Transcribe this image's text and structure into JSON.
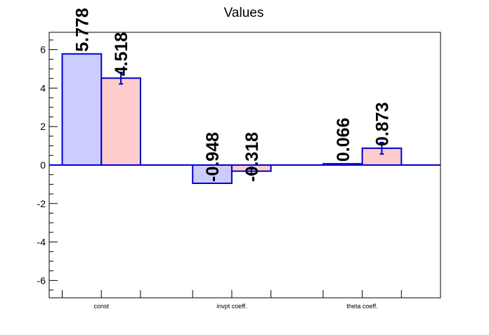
{
  "chart_data": {
    "type": "bar",
    "title": "Values",
    "xlabel": "",
    "ylabel": "",
    "categories": [
      "const",
      "invpt coeff.",
      "theta coeff."
    ],
    "ylim": [
      -6.9,
      6.9
    ],
    "yticks": [
      -6,
      -4,
      -2,
      0,
      2,
      4,
      6
    ],
    "grid": false,
    "legend": "none",
    "series": [
      {
        "values": [
          5.778,
          -0.948,
          0.066
        ],
        "labels": [
          "5.778",
          "-0.948",
          "0.066"
        ],
        "errors": [
          0,
          0,
          0
        ],
        "fill": "#ccccff",
        "stroke": "#0000cc"
      },
      {
        "values": [
          4.518,
          -0.318,
          0.873
        ],
        "labels": [
          "4.518",
          "-0.318",
          "0.873"
        ],
        "errors": [
          0.3,
          0.2,
          0.3
        ],
        "fill": "#ffcccc",
        "stroke": "#0000cc"
      }
    ],
    "axis_color": "#000000",
    "zero_line_color": "#0000cc"
  }
}
